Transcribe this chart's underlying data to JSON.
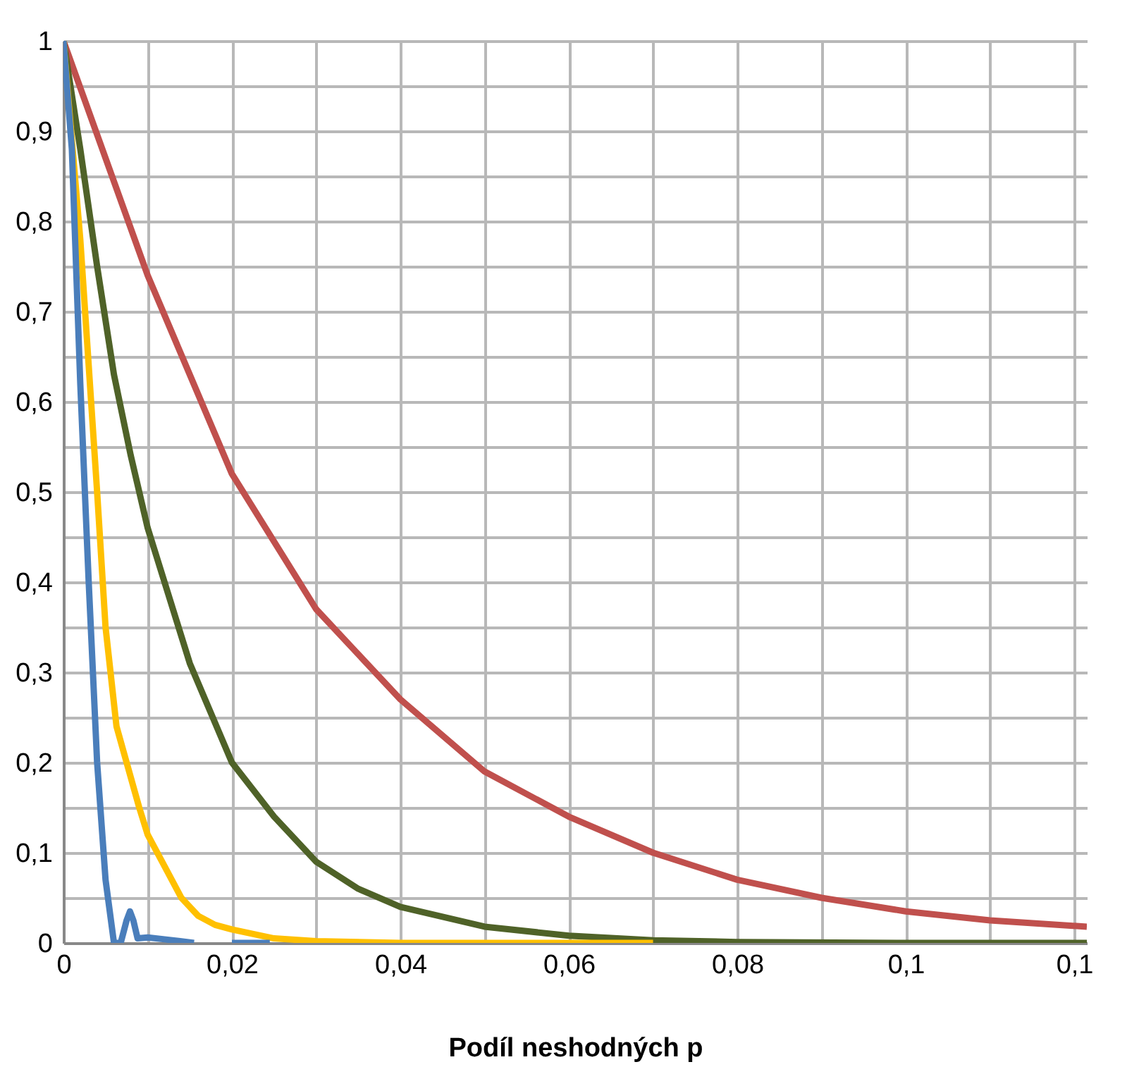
{
  "chart_data": {
    "type": "line",
    "xlabel": "Podíl neshodných p",
    "xlim": [
      0,
      0.1215
    ],
    "ylim": [
      0,
      1
    ],
    "xticks": [
      {
        "value": 0,
        "label": "0"
      },
      {
        "value": 0.01,
        "label": null
      },
      {
        "value": 0.02,
        "label": "0,02"
      },
      {
        "value": 0.03,
        "label": null
      },
      {
        "value": 0.04,
        "label": "0,04"
      },
      {
        "value": 0.05,
        "label": null
      },
      {
        "value": 0.06,
        "label": "0,06"
      },
      {
        "value": 0.07,
        "label": null
      },
      {
        "value": 0.08,
        "label": "0,08"
      },
      {
        "value": 0.09,
        "label": null
      },
      {
        "value": 0.1,
        "label": "0,1"
      },
      {
        "value": 0.11,
        "label": null
      },
      {
        "value": 0.12,
        "label": "0,1"
      }
    ],
    "yticks": [
      {
        "value": 0,
        "label": "0"
      },
      {
        "value": 0.05,
        "label": null
      },
      {
        "value": 0.1,
        "label": "0,1"
      },
      {
        "value": 0.15,
        "label": null
      },
      {
        "value": 0.2,
        "label": "0,2"
      },
      {
        "value": 0.25,
        "label": null
      },
      {
        "value": 0.3,
        "label": "0,3"
      },
      {
        "value": 0.35,
        "label": null
      },
      {
        "value": 0.4,
        "label": "0,4"
      },
      {
        "value": 0.45,
        "label": null
      },
      {
        "value": 0.5,
        "label": "0,5"
      },
      {
        "value": 0.55,
        "label": null
      },
      {
        "value": 0.6,
        "label": "0,6"
      },
      {
        "value": 0.65,
        "label": null
      },
      {
        "value": 0.7,
        "label": "0,7"
      },
      {
        "value": 0.75,
        "label": null
      },
      {
        "value": 0.8,
        "label": "0,8"
      },
      {
        "value": 0.85,
        "label": null
      },
      {
        "value": 0.9,
        "label": "0,9"
      },
      {
        "value": 0.95,
        "label": null
      },
      {
        "value": 1,
        "label": "1"
      }
    ],
    "grid": true,
    "marker": "none",
    "line_style": "solid",
    "series": [
      {
        "color": "#c0504d",
        "x": [
          0,
          0.01,
          0.02,
          0.03,
          0.04,
          0.05,
          0.06,
          0.07,
          0.08,
          0.09,
          0.1,
          0.11,
          0.1215
        ],
        "values": [
          1,
          0.74,
          0.52,
          0.37,
          0.27,
          0.19,
          0.14,
          0.1,
          0.07,
          0.05,
          0.035,
          0.025,
          0.018
        ]
      },
      {
        "color": "#4f6228",
        "x": [
          0,
          0.002,
          0.004,
          0.006,
          0.008,
          0.01,
          0.015,
          0.02,
          0.025,
          0.03,
          0.035,
          0.04,
          0.05,
          0.06,
          0.07,
          0.08,
          0.1,
          0.1215
        ],
        "values": [
          1,
          0.88,
          0.75,
          0.63,
          0.54,
          0.46,
          0.31,
          0.2,
          0.14,
          0.09,
          0.06,
          0.04,
          0.018,
          0.008,
          0.003,
          0.001,
          0,
          0
        ]
      },
      {
        "color": "#ffc000",
        "x": [
          0,
          0.002,
          0.004,
          0.005,
          0.0063,
          0.0075,
          0.009,
          0.01,
          0.012,
          0.014,
          0.016,
          0.018,
          0.02,
          0.025,
          0.03,
          0.04,
          0.07
        ],
        "values": [
          1,
          0.78,
          0.5,
          0.35,
          0.24,
          0.2,
          0.15,
          0.12,
          0.085,
          0.05,
          0.03,
          0.02,
          0.015,
          0.005,
          0.002,
          0,
          0
        ]
      },
      {
        "color": "#4a7ebb",
        "x": [
          0,
          0.001,
          0.002,
          0.003,
          0.004,
          0.005,
          0.006,
          0.0068,
          0.0075,
          0.0079,
          0.0083,
          0.0088,
          0.01,
          0.012,
          0.0155,
          0.017,
          0.02,
          0.0245
        ],
        "values": [
          1,
          0.88,
          0.62,
          0.4,
          0.2,
          0.07,
          0,
          0,
          0.025,
          0.035,
          0.025,
          0.005,
          0.006,
          0.004,
          0,
          null,
          0,
          0
        ]
      }
    ]
  }
}
